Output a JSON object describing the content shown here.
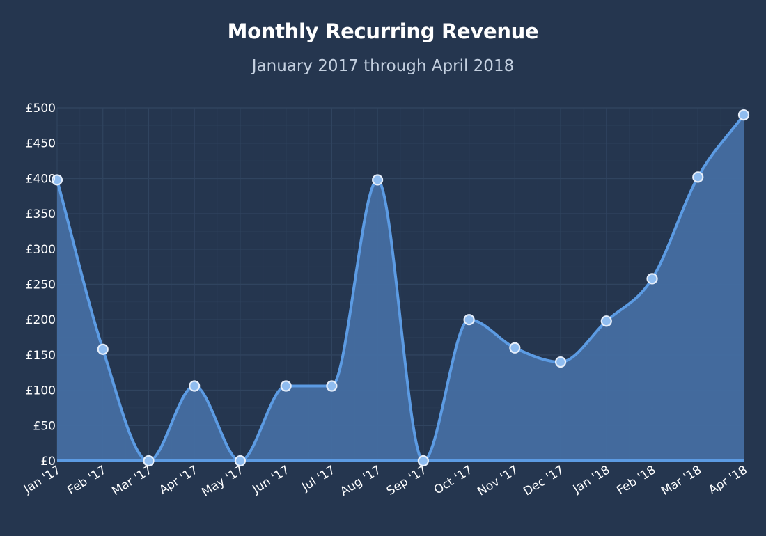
{
  "chart_data": {
    "type": "area",
    "title": "Monthly Recurring Revenue",
    "subtitle": "January 2017 through April 2018",
    "xlabel": "",
    "ylabel": "",
    "categories": [
      "Jan '17",
      "Feb '17",
      "Mar '17",
      "Apr '17",
      "May '17",
      "Jun '17",
      "Jul '17",
      "Aug '17",
      "Sep '17",
      "Oct '17",
      "Nov '17",
      "Dec '17",
      "Jan '18",
      "Feb '18",
      "Mar '18",
      "Apr '18"
    ],
    "values": [
      398,
      158,
      0,
      106,
      0,
      106,
      106,
      398,
      0,
      200,
      160,
      140,
      198,
      258,
      402,
      490
    ],
    "ylim": [
      0,
      500
    ],
    "yticks": [
      0,
      50,
      100,
      150,
      200,
      250,
      300,
      350,
      400,
      450,
      500
    ],
    "ytick_labels": [
      "£0",
      "£50",
      "£100",
      "£150",
      "£200",
      "£250",
      "£300",
      "£350",
      "£400",
      "£450",
      "£500"
    ],
    "grid": true,
    "colors": {
      "background": "#25364f",
      "line": "#5c9be3",
      "fill": "#446ea1",
      "marker_fill": "#8fbcef",
      "marker_stroke": "#e6eefa",
      "grid": "#30445f"
    }
  }
}
